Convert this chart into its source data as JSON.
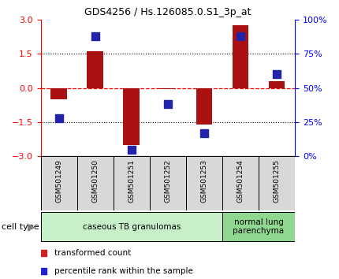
{
  "title": "GDS4256 / Hs.126085.0.S1_3p_at",
  "samples": [
    "GSM501249",
    "GSM501250",
    "GSM501251",
    "GSM501252",
    "GSM501253",
    "GSM501254",
    "GSM501255"
  ],
  "transformed_count": [
    -0.5,
    1.6,
    -2.5,
    -0.05,
    -1.6,
    2.75,
    0.3
  ],
  "percentile_rank": [
    28,
    88,
    5,
    38,
    17,
    88,
    60
  ],
  "bar_color": "#aa1111",
  "dot_color": "#2222aa",
  "left_ylim": [
    -3,
    3
  ],
  "right_ylim": [
    0,
    100
  ],
  "left_yticks": [
    -3,
    -1.5,
    0,
    1.5,
    3
  ],
  "right_yticks": [
    0,
    25,
    50,
    75,
    100
  ],
  "right_yticklabels": [
    "0%",
    "25%",
    "50%",
    "75%",
    "100%"
  ],
  "dotted_lines": [
    -1.5,
    0,
    1.5
  ],
  "cell_type_groups": [
    {
      "label": "caseous TB granulomas",
      "indices": [
        0,
        1,
        2,
        3,
        4
      ],
      "color": "#c8f0c8"
    },
    {
      "label": "normal lung\nparenchyma",
      "indices": [
        5,
        6
      ],
      "color": "#90d890"
    }
  ],
  "cell_type_label": "cell type",
  "legend_items": [
    {
      "label": "transformed count",
      "color": "#cc2222",
      "marker": "s"
    },
    {
      "label": "percentile rank within the sample",
      "color": "#2222cc",
      "marker": "s"
    }
  ],
  "background_color": "#ffffff",
  "plot_bg": "#ffffff",
  "bar_width": 0.45,
  "dot_size": 45,
  "sample_box_color": "#d8d8d8"
}
